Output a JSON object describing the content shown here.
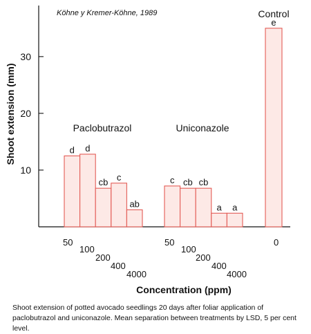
{
  "source_note": "Köhne y Kremer-Köhne, 1989",
  "caption": "Shoot extension of potted avocado seedlings 20 days after foliar application of paclobutrazol and uniconazole. Mean separation between treatments by LSD, 5 per cent level.",
  "colors": {
    "bar_fill": "#fde9e6",
    "bar_stroke": "#e35b55",
    "axis": "#111111"
  },
  "chart_data": {
    "type": "bar",
    "title": "",
    "xlabel": "Concentration (ppm)",
    "ylabel": "Shoot extension (mm)",
    "ylim": [
      0,
      39
    ],
    "yticks": [
      10,
      20,
      30
    ],
    "grid": false,
    "groups": [
      {
        "name": "Paclobutrazol",
        "bars": [
          {
            "category": "50",
            "value": 12.5,
            "label": "d"
          },
          {
            "category": "100",
            "value": 12.8,
            "label": "d"
          },
          {
            "category": "200",
            "value": 6.8,
            "label": "cb"
          },
          {
            "category": "400",
            "value": 7.7,
            "label": "c"
          },
          {
            "category": "4000",
            "value": 3.0,
            "label": "ab"
          }
        ]
      },
      {
        "name": "Uniconazole",
        "bars": [
          {
            "category": "50",
            "value": 7.2,
            "label": "c"
          },
          {
            "category": "100",
            "value": 6.8,
            "label": "cb"
          },
          {
            "category": "200",
            "value": 6.8,
            "label": "cb"
          },
          {
            "category": "400",
            "value": 2.4,
            "label": "a"
          },
          {
            "category": "4000",
            "value": 2.4,
            "label": "a"
          }
        ]
      },
      {
        "name": "Control",
        "bars": [
          {
            "category": "0",
            "value": 35.0,
            "label": "e"
          }
        ]
      }
    ]
  }
}
